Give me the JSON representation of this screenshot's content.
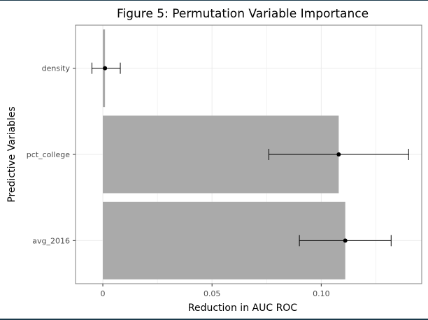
{
  "chart_data": {
    "type": "bar",
    "orientation": "horizontal",
    "title": "Figure 5: Permutation Variable Importance",
    "xlabel": "Reduction in AUC ROC",
    "ylabel": "Predictive Variables",
    "categories": [
      "density",
      "pct_college",
      "avg_2016"
    ],
    "values": [
      0.001,
      0.108,
      0.111
    ],
    "points": [
      0.001,
      0.108,
      0.111
    ],
    "error_low": [
      -0.005,
      0.076,
      0.09
    ],
    "error_high": [
      0.008,
      0.14,
      0.132
    ],
    "xlim": [
      -0.0125,
      0.146
    ],
    "xticks": [
      0,
      0.05,
      0.1
    ],
    "xtick_labels": [
      "0",
      "0.05",
      "0.10"
    ],
    "grid": true,
    "colors": {
      "bar": "#aaaaaa",
      "point": "#000000",
      "errorbar": "#000000",
      "panel_border": "#7f7f7f",
      "grid": "#ebebeb"
    }
  }
}
